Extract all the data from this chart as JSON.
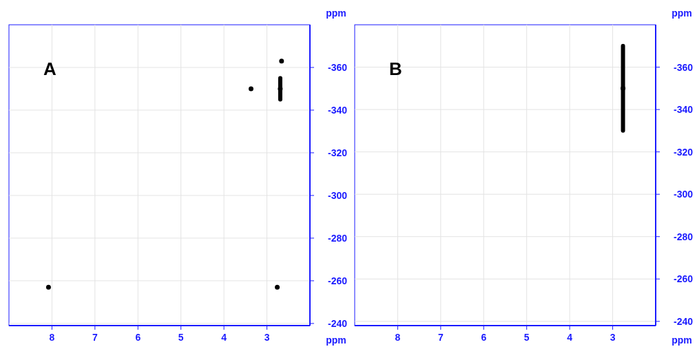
{
  "chart_data": [
    {
      "type": "scatter",
      "title": "A",
      "xlabel": "ppm",
      "ylabel": "ppm",
      "xlim": [
        9,
        2
      ],
      "ylim": [
        -239,
        -380
      ],
      "xticks": [
        8,
        7,
        6,
        5,
        4,
        3
      ],
      "yticks": [
        -360,
        -340,
        -320,
        -300,
        -280,
        -260,
        -240
      ],
      "grid": true,
      "marker": "circle",
      "series": [
        {
          "color": "#000000",
          "x": [
            2.66,
            3.37,
            2.69,
            8.08,
            2.76
          ],
          "values": [
            -363,
            -350,
            -350,
            -257,
            -257
          ],
          "errors": [
            null,
            null,
            5,
            null,
            null
          ]
        }
      ]
    },
    {
      "type": "scatter",
      "title": "B",
      "xlabel": "ppm",
      "ylabel": "ppm",
      "xlim": [
        9,
        2
      ],
      "ylim": [
        -238,
        -380
      ],
      "xticks": [
        8,
        7,
        6,
        5,
        4,
        3
      ],
      "yticks": [
        -360,
        -340,
        -320,
        -300,
        -280,
        -260,
        -240
      ],
      "grid": true,
      "marker": "circle",
      "series": [
        {
          "color": "#000000",
          "x": [
            2.76
          ],
          "values": [
            -350
          ],
          "errors": [
            20
          ]
        }
      ]
    }
  ]
}
